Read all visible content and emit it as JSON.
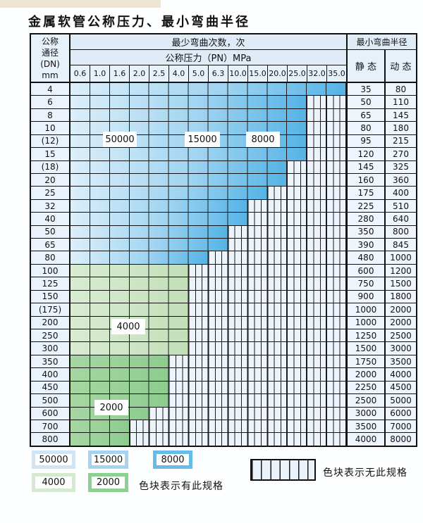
{
  "title": "金属软管公称压力、最小弯曲半径",
  "table": {
    "dn_header_lines": [
      "公称",
      "通径",
      "(DN)",
      "mm"
    ],
    "cycles_header": "最少弯曲次数，次",
    "pressure_header": "公称压力（PN）MPa",
    "pressure_columns": [
      "0.6",
      "1.0",
      "1.6",
      "2.0",
      "2.5",
      "4.0",
      "5.0",
      "6.3",
      "10.0",
      "15.0",
      "20.0",
      "25.0",
      "32.0",
      "35.0"
    ],
    "radius_header": "最小弯曲半径",
    "static_header": "静 态",
    "dynamic_header": "动 态",
    "rows": [
      {
        "dn": "4",
        "static": "35",
        "dynamic": "80",
        "available": 14,
        "shade": "blue"
      },
      {
        "dn": "6",
        "static": "50",
        "dynamic": "110",
        "available": 12,
        "shade": "blue"
      },
      {
        "dn": "8",
        "static": "65",
        "dynamic": "145",
        "available": 12,
        "shade": "blue"
      },
      {
        "dn": "10",
        "static": "80",
        "dynamic": "180",
        "available": 12,
        "shade": "blue"
      },
      {
        "dn": "(12)",
        "static": "95",
        "dynamic": "215",
        "available": 12,
        "shade": "blue"
      },
      {
        "dn": "15",
        "static": "120",
        "dynamic": "270",
        "available": 12,
        "shade": "blue"
      },
      {
        "dn": "(18)",
        "static": "145",
        "dynamic": "325",
        "available": 11,
        "shade": "blue"
      },
      {
        "dn": "20",
        "static": "160",
        "dynamic": "360",
        "available": 11,
        "shade": "blue"
      },
      {
        "dn": "25",
        "static": "175",
        "dynamic": "400",
        "available": 10,
        "shade": "blue"
      },
      {
        "dn": "32",
        "static": "225",
        "dynamic": "510",
        "available": 9,
        "shade": "blue"
      },
      {
        "dn": "40",
        "static": "280",
        "dynamic": "640",
        "available": 9,
        "shade": "blue"
      },
      {
        "dn": "50",
        "static": "350",
        "dynamic": "800",
        "available": 8,
        "shade": "blue"
      },
      {
        "dn": "65",
        "static": "390",
        "dynamic": "845",
        "available": 8,
        "shade": "blue"
      },
      {
        "dn": "80",
        "static": "480",
        "dynamic": "1000",
        "available": 7,
        "shade": "blue"
      },
      {
        "dn": "100",
        "static": "600",
        "dynamic": "1200",
        "available": 6,
        "shade": "green-light"
      },
      {
        "dn": "125",
        "static": "750",
        "dynamic": "1500",
        "available": 6,
        "shade": "green-light"
      },
      {
        "dn": "150",
        "static": "900",
        "dynamic": "1800",
        "available": 6,
        "shade": "green-light"
      },
      {
        "dn": "(175)",
        "static": "1000",
        "dynamic": "2000",
        "available": 6,
        "shade": "green-light"
      },
      {
        "dn": "200",
        "static": "1000",
        "dynamic": "2000",
        "available": 6,
        "shade": "green-light"
      },
      {
        "dn": "250",
        "static": "1250",
        "dynamic": "2500",
        "available": 6,
        "shade": "green-light"
      },
      {
        "dn": "300",
        "static": "1500",
        "dynamic": "3000",
        "available": 6,
        "shade": "green-light"
      },
      {
        "dn": "350",
        "static": "1750",
        "dynamic": "3500",
        "available": 5,
        "shade": "green-dark"
      },
      {
        "dn": "400",
        "static": "2000",
        "dynamic": "4000",
        "available": 5,
        "shade": "green-dark"
      },
      {
        "dn": "450",
        "static": "2250",
        "dynamic": "4500",
        "available": 5,
        "shade": "green-dark"
      },
      {
        "dn": "500",
        "static": "2500",
        "dynamic": "5000",
        "available": 5,
        "shade": "green-dark"
      },
      {
        "dn": "600",
        "static": "3000",
        "dynamic": "6000",
        "available": 4,
        "shade": "green-dark"
      },
      {
        "dn": "700",
        "static": "3500",
        "dynamic": "7000",
        "available": 3,
        "shade": "green-dark"
      },
      {
        "dn": "800",
        "static": "4000",
        "dynamic": "8000",
        "available": 3,
        "shade": "green-dark"
      }
    ],
    "zone_labels": [
      {
        "text": "50000"
      },
      {
        "text": "15000"
      },
      {
        "text": "8000"
      },
      {
        "text": "4000"
      },
      {
        "text": "2000"
      }
    ]
  },
  "legend": {
    "items": [
      {
        "label": "50000",
        "color": "#cfe4f5"
      },
      {
        "label": "15000",
        "color": "#a6d3ef"
      },
      {
        "label": "8000",
        "color": "#66bbe8"
      },
      {
        "label": "4000",
        "color": "#d5e9d0"
      },
      {
        "label": "2000",
        "color": "#8ecf92"
      }
    ],
    "has_spec_text": "色块表示有此规格",
    "no_spec_text": "色块表示无此规格"
  },
  "colors": {
    "blue_start": "#dceef9",
    "blue_mid": "#9fd4f1",
    "blue_end": "#55b3e6",
    "green_light_start": "#d9ecd2",
    "green_light_mid": "#cde5c5",
    "green_light_end": "#c2dfb8",
    "green_dark_start": "#a6d6a2",
    "green_dark_mid": "#99d199",
    "green_dark_end": "#8ccb8e",
    "nospec_fill": "#edf4fb",
    "grid_line": "#1c1c1c"
  }
}
